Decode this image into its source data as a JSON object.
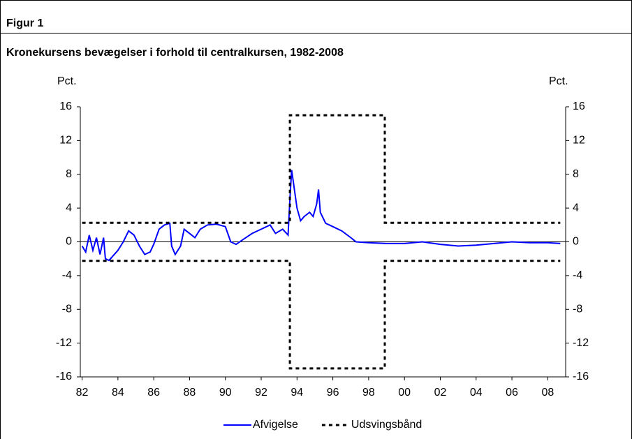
{
  "header": "Figur 1",
  "chart_data": {
    "type": "line",
    "title": "Kronekursens bevægelser i forhold til centralkursen, 1982-2008",
    "y_label": "Pct.",
    "y2_label": "Pct.",
    "xlim": [
      1981.9,
      2009.0
    ],
    "xticks": [
      {
        "value": 1982,
        "label": "82"
      },
      {
        "value": 1984,
        "label": "84"
      },
      {
        "value": 1986,
        "label": "86"
      },
      {
        "value": 1988,
        "label": "88"
      },
      {
        "value": 1990,
        "label": "90"
      },
      {
        "value": 1992,
        "label": "92"
      },
      {
        "value": 1994,
        "label": "94"
      },
      {
        "value": 1996,
        "label": "96"
      },
      {
        "value": 1998,
        "label": "98"
      },
      {
        "value": 2000,
        "label": "00"
      },
      {
        "value": 2002,
        "label": "02"
      },
      {
        "value": 2004,
        "label": "04"
      },
      {
        "value": 2006,
        "label": "06"
      },
      {
        "value": 2008,
        "label": "08"
      }
    ],
    "ylim": [
      -16,
      16
    ],
    "yticks": [
      -16,
      -12,
      -8,
      -4,
      0,
      4,
      8,
      12,
      16
    ],
    "y2lim": [
      -16,
      16
    ],
    "y2ticks": [
      -16,
      -12,
      -8,
      -4,
      0,
      4,
      8,
      12,
      16
    ],
    "zero_line": true,
    "legend": "bottom",
    "series": [
      {
        "name": "Afvigelse",
        "color": "#0000ff",
        "x": [
          1982.0,
          1982.2,
          1982.4,
          1982.6,
          1982.8,
          1983.0,
          1983.2,
          1983.3,
          1983.5,
          1983.8,
          1984.0,
          1984.3,
          1984.6,
          1984.9,
          1985.2,
          1985.5,
          1985.8,
          1986.0,
          1986.3,
          1986.6,
          1986.9,
          1987.0,
          1987.2,
          1987.5,
          1987.7,
          1988.0,
          1988.3,
          1988.6,
          1989.0,
          1989.5,
          1990.0,
          1990.3,
          1990.6,
          1991.0,
          1991.5,
          1992.0,
          1992.5,
          1992.8,
          1993.2,
          1993.5,
          1993.6,
          1993.7,
          1993.8,
          1994.0,
          1994.2,
          1994.4,
          1994.7,
          1994.9,
          1995.1,
          1995.2,
          1995.3,
          1995.6,
          1996.0,
          1996.5,
          1997.0,
          1997.3,
          1998.0,
          1999.0,
          2000.0,
          2001.0,
          2002.0,
          2003.0,
          2004.0,
          2005.0,
          2006.0,
          2007.0,
          2008.0,
          2008.7
        ],
        "values": [
          -0.5,
          -1.2,
          0.8,
          -1.0,
          0.5,
          -1.5,
          0.5,
          -2.0,
          -2.2,
          -1.5,
          -1.0,
          0,
          1.3,
          0.8,
          -0.5,
          -1.5,
          -1.2,
          -0.3,
          1.5,
          2.0,
          2.2,
          -0.5,
          -1.5,
          -0.5,
          1.5,
          1.0,
          0.5,
          1.5,
          2.0,
          2.1,
          1.8,
          0,
          -0.3,
          0.3,
          1.0,
          1.5,
          2.0,
          1.0,
          1.5,
          0.8,
          5,
          8.5,
          7,
          4,
          2.5,
          3,
          3.5,
          3.0,
          4.5,
          6.2,
          3.5,
          2.2,
          1.8,
          1.3,
          0.5,
          0,
          -0.1,
          -0.2,
          -0.2,
          0,
          -0.3,
          -0.5,
          -0.4,
          -0.2,
          0,
          -0.1,
          -0.1,
          -0.2
        ]
      },
      {
        "name": "Udsvingsbånd",
        "color": "#000000",
        "dashed": true,
        "x": [
          1982.0,
          1993.6,
          1993.6,
          1998.9,
          1998.9,
          2008.7
        ],
        "upper": [
          2.25,
          2.25,
          15,
          15,
          2.25,
          2.25
        ],
        "lower": [
          -2.25,
          -2.25,
          -15,
          -15,
          -2.25,
          -2.25
        ]
      }
    ]
  }
}
